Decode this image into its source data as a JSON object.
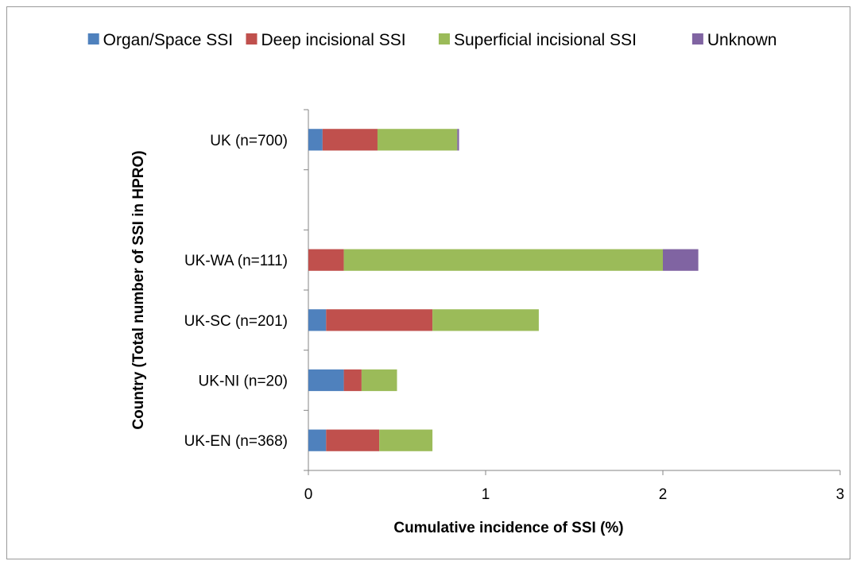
{
  "chart_data": {
    "type": "bar",
    "orientation": "horizontal",
    "stacked": true,
    "categories": [
      "UK (n=700)",
      "",
      "UK-WA (n=111)",
      "UK-SC (n=201)",
      "UK-NI (n=20)",
      "UK-EN (n=368)"
    ],
    "series": [
      {
        "name": "Organ/Space SSI",
        "color": "#4f81bd",
        "values": [
          0.08,
          0,
          0,
          0.1,
          0.2,
          0.1
        ]
      },
      {
        "name": "Deep incisional SSI",
        "color": "#c0504d",
        "values": [
          0.31,
          0,
          0.2,
          0.6,
          0.1,
          0.3
        ]
      },
      {
        "name": "Superficial incisional SSI",
        "color": "#9bbb59",
        "values": [
          0.45,
          0,
          1.8,
          0.6,
          0.2,
          0.3
        ]
      },
      {
        "name": "Unknown",
        "color": "#8064a2",
        "values": [
          0.01,
          0,
          0.2,
          0,
          0,
          0
        ]
      }
    ],
    "xlabel": "Cumulative incidence of SSI (%)",
    "ylabel": "Country  (Total number of SSI in HPRO)",
    "xlim": [
      0,
      3
    ],
    "xticks": [
      "0",
      "1",
      "2",
      "3"
    ],
    "grid": false,
    "legend_position": "top"
  }
}
